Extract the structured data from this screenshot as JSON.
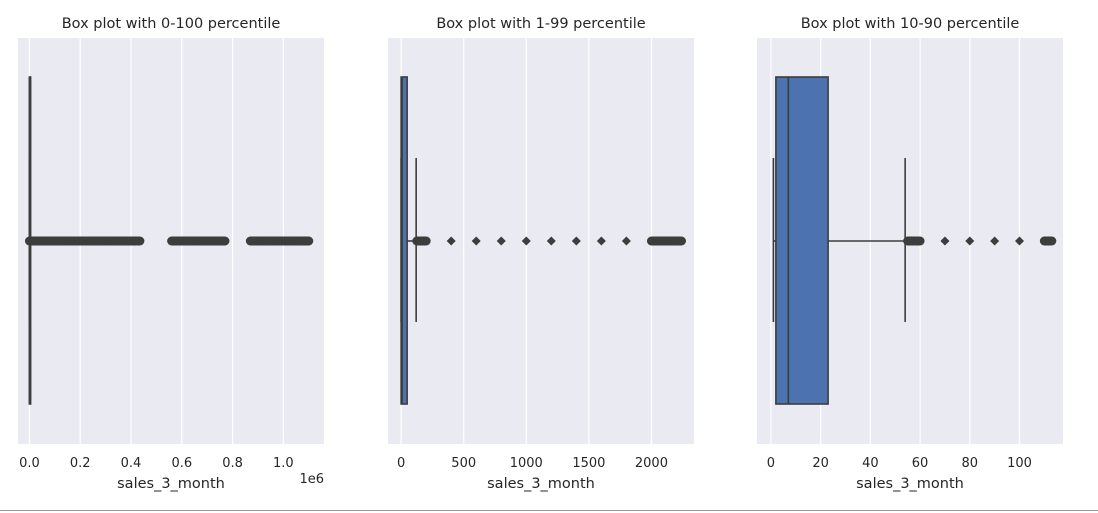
{
  "chart_data": [
    {
      "type": "boxplot",
      "title": "Box plot with 0-100 percentile",
      "xlabel": "sales_3_month",
      "ylabel": "",
      "xlim": [
        -45000,
        1160000
      ],
      "tick_values": [
        0,
        200000,
        400000,
        600000,
        800000,
        1000000
      ],
      "tick_labels": [
        "0.0",
        "0.2",
        "0.4",
        "0.6",
        "0.8",
        "1.0"
      ],
      "offset_label": "1e6",
      "box": {
        "whisker_low": 0,
        "q1": 0,
        "median": 0,
        "q3": 10,
        "whisker_high": 25
      },
      "outliers": [
        30,
        5000,
        15000,
        30000,
        50000,
        80000,
        120000,
        160000,
        200000,
        240000,
        285000,
        350000,
        365000,
        395000,
        415000,
        435000,
        560000,
        575000,
        620000,
        680000,
        700000,
        720000,
        735000,
        755000,
        770000,
        870000,
        885000,
        905000,
        935000,
        980000,
        1045000,
        1075000,
        1090000,
        1100000
      ],
      "grid": true,
      "box_color": "#4c72b0"
    },
    {
      "type": "boxplot",
      "title": "Box plot with 1-99 percentile",
      "xlabel": "sales_3_month",
      "ylabel": "",
      "xlim": [
        -105,
        2340
      ],
      "tick_values": [
        0,
        500,
        1000,
        1500,
        2000
      ],
      "tick_labels": [
        "0",
        "500",
        "1000",
        "1500",
        "2000"
      ],
      "offset_label": "",
      "box": {
        "whisker_low": 0,
        "q1": 0,
        "median": 8,
        "q3": 48,
        "whisker_high": 120
      },
      "outliers": [
        125,
        200,
        400,
        600,
        800,
        1000,
        1200,
        1400,
        1600,
        1800,
        2000,
        2150,
        2240
      ],
      "grid": true,
      "box_color": "#4c72b0"
    },
    {
      "type": "boxplot",
      "title": "Box plot with 10-90 percentile",
      "xlabel": "sales_3_month",
      "ylabel": "",
      "xlim": [
        -5.6,
        117.5
      ],
      "tick_values": [
        0,
        20,
        40,
        60,
        80,
        100
      ],
      "tick_labels": [
        "0",
        "20",
        "40",
        "60",
        "80",
        "100"
      ],
      "offset_label": "",
      "box": {
        "whisker_low": 1,
        "q1": 2,
        "median": 7,
        "q3": 23,
        "whisker_high": 54
      },
      "outliers": [
        55,
        60,
        70,
        80,
        90,
        100,
        110,
        113
      ],
      "grid": true,
      "box_color": "#4c72b0"
    }
  ]
}
